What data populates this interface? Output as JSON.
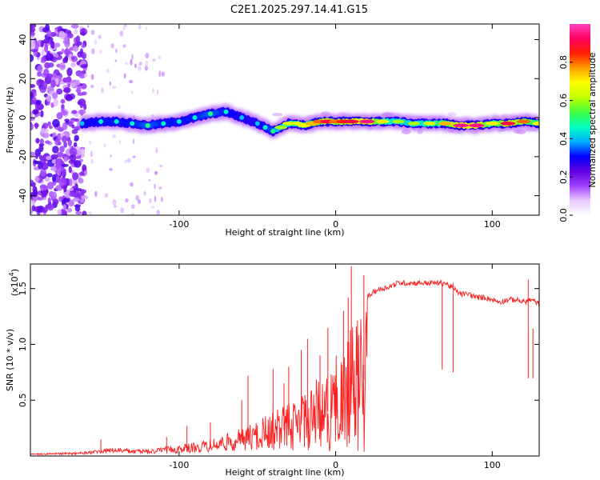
{
  "figure_title": "C2E1.2025.297.14.41.G15",
  "chart_data": [
    {
      "type": "heatmap",
      "name": "spectrogram",
      "xlabel": "Height of straight line (km)",
      "ylabel": "Frequency (Hz)",
      "xlim": [
        -195,
        130
      ],
      "ylim": [
        -50,
        48
      ],
      "xticks": [
        -100,
        0,
        100
      ],
      "xtick_labels": [
        "-100",
        "0",
        "100"
      ],
      "yticks": [
        -40,
        -20,
        0,
        20,
        40
      ],
      "ytick_labels": [
        "-40",
        "-20",
        "0",
        "20",
        "40"
      ],
      "colorbar": {
        "label": "Normalized spectral amplitude",
        "range": [
          0,
          1
        ],
        "ticks": [
          0.0,
          0.2,
          0.4,
          0.6,
          0.8
        ],
        "tick_labels": [
          "0.0",
          "0.2",
          "0.4",
          "0.6",
          "0.8"
        ],
        "colors": [
          "#ffffff",
          "#e8c8ff",
          "#a040ff",
          "#6000e0",
          "#0000ff",
          "#00b0ff",
          "#00ffc0",
          "#40ff40",
          "#c0ff00",
          "#ffff00",
          "#ffa000",
          "#ff2000",
          "#ff0060",
          "#ff40c0"
        ]
      },
      "ridge": {
        "x": [
          -162,
          -150,
          -140,
          -130,
          -120,
          -110,
          -100,
          -90,
          -80,
          -70,
          -60,
          -50,
          -45,
          -40,
          -35,
          -30,
          -25,
          -20,
          -15,
          -10,
          -5,
          0,
          5,
          10,
          20,
          30,
          40,
          50,
          60,
          70,
          80,
          90,
          100,
          110,
          120,
          130
        ],
        "freq": [
          -3,
          -2,
          -2,
          -3,
          -4,
          -3,
          -2,
          0,
          2,
          3,
          0,
          -3,
          -5,
          -7,
          -5,
          -3,
          -3,
          -4,
          -3,
          -2,
          -2,
          -2,
          -2,
          -2,
          -2,
          -2,
          -2,
          -3,
          -3,
          -3,
          -4,
          -4,
          -3,
          -3,
          -2,
          -3
        ],
        "amplitude": [
          0.4,
          0.45,
          0.45,
          0.45,
          0.5,
          0.45,
          0.45,
          0.45,
          0.5,
          0.45,
          0.4,
          0.4,
          0.45,
          0.5,
          0.6,
          0.65,
          0.65,
          0.7,
          0.75,
          0.8,
          0.9,
          0.8,
          0.85,
          0.9,
          0.95,
          0.7,
          0.6,
          0.6,
          0.65,
          0.75,
          0.95,
          0.95,
          0.7,
          0.9,
          0.8,
          0.7
        ]
      },
      "noise_region": [
        -195,
        -160
      ]
    },
    {
      "type": "line",
      "name": "snr",
      "xlabel": "Height of straight line (km)",
      "ylabel": "SNR (10 * v/v)",
      "scale_label": "(x10",
      "scale_exponent": "4",
      "xlim": [
        -195,
        130
      ],
      "ylim": [
        0,
        1.72
      ],
      "xticks": [
        -100,
        0,
        100
      ],
      "xtick_labels": [
        "-100",
        "0",
        "100"
      ],
      "yticks": [
        0.5,
        1.0,
        1.5
      ],
      "ytick_labels": [
        "0.5",
        "1.0",
        "1.5"
      ],
      "color": "#ff2020",
      "series": [
        {
          "name": "SNR",
          "x": [
            -195,
            -180,
            -170,
            -160,
            -150,
            -140,
            -130,
            -120,
            -110,
            -100,
            -90,
            -80,
            -70,
            -60,
            -50,
            -45,
            -40,
            -35,
            -30,
            -25,
            -20,
            -15,
            -10,
            -5,
            0,
            5,
            10,
            15,
            20,
            25,
            30,
            35,
            40,
            50,
            60,
            65,
            70,
            75,
            80,
            85,
            90,
            95,
            100,
            105,
            110,
            115,
            120,
            125,
            130
          ],
          "y": [
            0.02,
            0.03,
            0.03,
            0.04,
            0.06,
            0.08,
            0.06,
            0.06,
            0.08,
            0.1,
            0.12,
            0.15,
            0.2,
            0.25,
            0.32,
            0.36,
            0.4,
            0.45,
            0.48,
            0.52,
            0.6,
            0.66,
            0.72,
            0.8,
            0.9,
            1.0,
            1.15,
            1.3,
            1.42,
            1.48,
            1.5,
            1.52,
            1.55,
            1.55,
            1.55,
            1.55,
            1.55,
            1.5,
            1.45,
            1.45,
            1.42,
            1.42,
            1.4,
            1.38,
            1.4,
            1.4,
            1.38,
            1.4,
            1.36
          ],
          "spikes": [
            [
              -150,
              0.15
            ],
            [
              -108,
              0.17
            ],
            [
              -95,
              0.27
            ],
            [
              -80,
              0.3
            ],
            [
              -60,
              0.5
            ],
            [
              -56,
              0.72
            ],
            [
              -40,
              0.78
            ],
            [
              -33,
              0.65
            ],
            [
              -30,
              0.8
            ],
            [
              -22,
              0.95
            ],
            [
              -18,
              1.05
            ],
            [
              -10,
              0.9
            ],
            [
              -5,
              1.15
            ],
            [
              5,
              1.3
            ],
            [
              8,
              1.42
            ],
            [
              10,
              1.7
            ],
            [
              18,
              1.62
            ],
            [
              68,
              1.55
            ],
            [
              75,
              1.55
            ],
            [
              123,
              1.58
            ],
            [
              126,
              1.14
            ]
          ]
        }
      ]
    }
  ]
}
